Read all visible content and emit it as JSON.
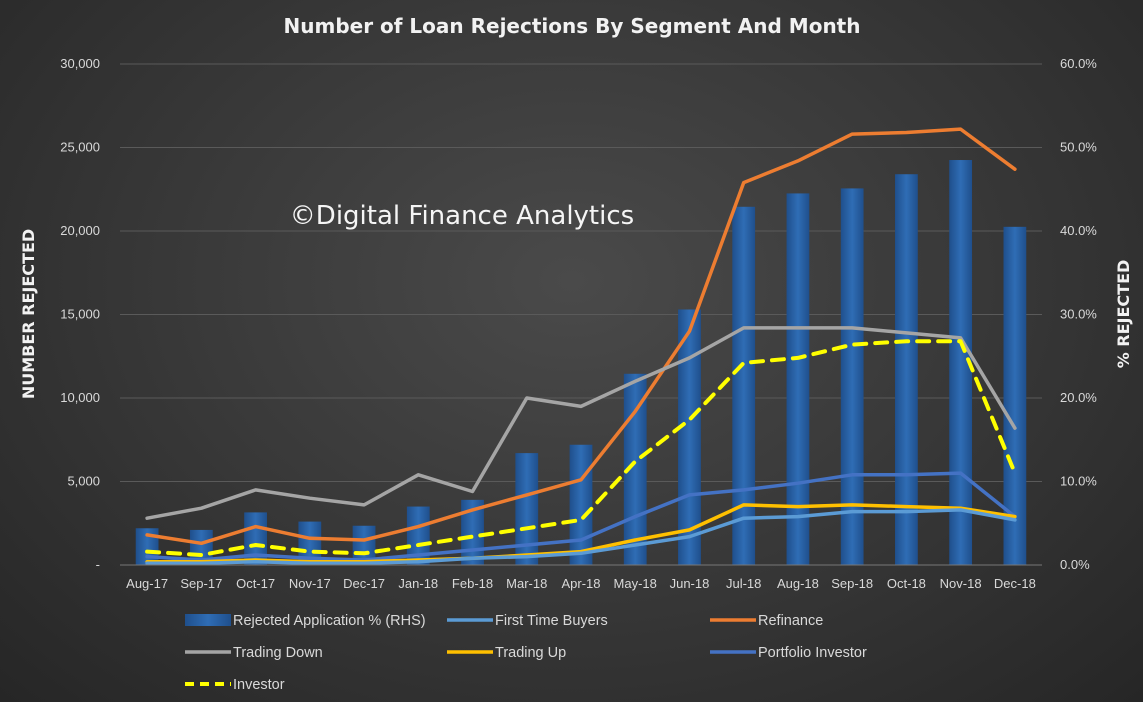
{
  "chart_data": {
    "type": "bar",
    "title": "Number of Loan Rejections By Segment And Month",
    "watermark": "©Digital Finance Analytics",
    "ylabel": "NUMBER REJECTED",
    "y2label": "% REJECTED",
    "ylim": [
      0,
      30000
    ],
    "y2lim": [
      0,
      60
    ],
    "y_ticks": [
      {
        "value": 0,
        "label": "-"
      },
      {
        "value": 5000,
        "label": "5,000"
      },
      {
        "value": 10000,
        "label": "10,000"
      },
      {
        "value": 15000,
        "label": "15,000"
      },
      {
        "value": 20000,
        "label": "20,000"
      },
      {
        "value": 25000,
        "label": "25,000"
      },
      {
        "value": 30000,
        "label": "30,000"
      }
    ],
    "y2_ticks": [
      {
        "value": 0,
        "label": "0.0%"
      },
      {
        "value": 10,
        "label": "10.0%"
      },
      {
        "value": 20,
        "label": "20.0%"
      },
      {
        "value": 30,
        "label": "30.0%"
      },
      {
        "value": 40,
        "label": "40.0%"
      },
      {
        "value": 50,
        "label": "50.0%"
      },
      {
        "value": 60,
        "label": "60.0%"
      }
    ],
    "categories": [
      "Aug-17",
      "Sep-17",
      "Oct-17",
      "Nov-17",
      "Dec-17",
      "Jan-18",
      "Feb-18",
      "Mar-18",
      "Apr-18",
      "May-18",
      "Jun-18",
      "Jul-18",
      "Aug-18",
      "Sep-18",
      "Oct-18",
      "Nov-18",
      "Dec-18"
    ],
    "bar_series": {
      "name": "Rejected Application % (RHS)",
      "axis": "right",
      "color": "#2f6db5",
      "values": [
        4.4,
        4.2,
        6.3,
        5.2,
        4.7,
        7.0,
        7.8,
        13.4,
        14.4,
        22.9,
        30.6,
        42.9,
        44.5,
        45.1,
        46.8,
        48.5,
        40.5
      ]
    },
    "series": [
      {
        "name": "Refinance",
        "axis": "left",
        "color": "#ed7d31",
        "dashed": false,
        "values": [
          1800,
          1300,
          2300,
          1600,
          1500,
          2300,
          3300,
          4200,
          5100,
          9200,
          14000,
          22900,
          24200,
          25800,
          25900,
          26100,
          23700
        ]
      },
      {
        "name": "Trading Down",
        "axis": "left",
        "color": "#a5a5a5",
        "dashed": false,
        "values": [
          2800,
          3400,
          4500,
          4000,
          3600,
          5400,
          4400,
          10000,
          9500,
          11000,
          12400,
          14200,
          14200,
          14200,
          13900,
          13600,
          8200
        ]
      },
      {
        "name": "Investor",
        "axis": "left",
        "color": "#ffff00",
        "dashed": true,
        "values": [
          800,
          600,
          1200,
          800,
          700,
          1200,
          1700,
          2200,
          2700,
          6200,
          8700,
          12100,
          12400,
          13200,
          13400,
          13400,
          5500
        ]
      },
      {
        "name": "Portfolio Investor",
        "axis": "left",
        "color": "#4472c4",
        "dashed": false,
        "values": [
          500,
          300,
          600,
          400,
          300,
          600,
          900,
          1200,
          1500,
          2900,
          4200,
          4500,
          4900,
          5400,
          5400,
          5500,
          2900
        ]
      },
      {
        "name": "Trading Up",
        "axis": "left",
        "color": "#ffc000",
        "dashed": false,
        "values": [
          200,
          200,
          300,
          200,
          200,
          300,
          400,
          600,
          800,
          1500,
          2100,
          3600,
          3500,
          3600,
          3500,
          3400,
          2900
        ]
      },
      {
        "name": "First Time Buyers",
        "axis": "left",
        "color": "#5b9bd5",
        "dashed": false,
        "values": [
          100,
          100,
          200,
          100,
          100,
          200,
          400,
          500,
          700,
          1200,
          1700,
          2800,
          2900,
          3200,
          3200,
          3300,
          2700
        ]
      }
    ],
    "legend": [
      {
        "label": "Rejected Application % (RHS)",
        "kind": "bar",
        "color": "#2f6db5",
        "dashed": false
      },
      {
        "label": "First Time Buyers",
        "kind": "line",
        "color": "#5b9bd5",
        "dashed": false
      },
      {
        "label": "Refinance",
        "kind": "line",
        "color": "#ed7d31",
        "dashed": false
      },
      {
        "label": "Trading Down",
        "kind": "line",
        "color": "#a5a5a5",
        "dashed": false
      },
      {
        "label": "Trading Up",
        "kind": "line",
        "color": "#ffc000",
        "dashed": false
      },
      {
        "label": "Portfolio Investor",
        "kind": "line",
        "color": "#4472c4",
        "dashed": false
      },
      {
        "label": "Investor",
        "kind": "line",
        "color": "#ffff00",
        "dashed": true
      }
    ],
    "legend_position": "bottom",
    "grid": true
  }
}
